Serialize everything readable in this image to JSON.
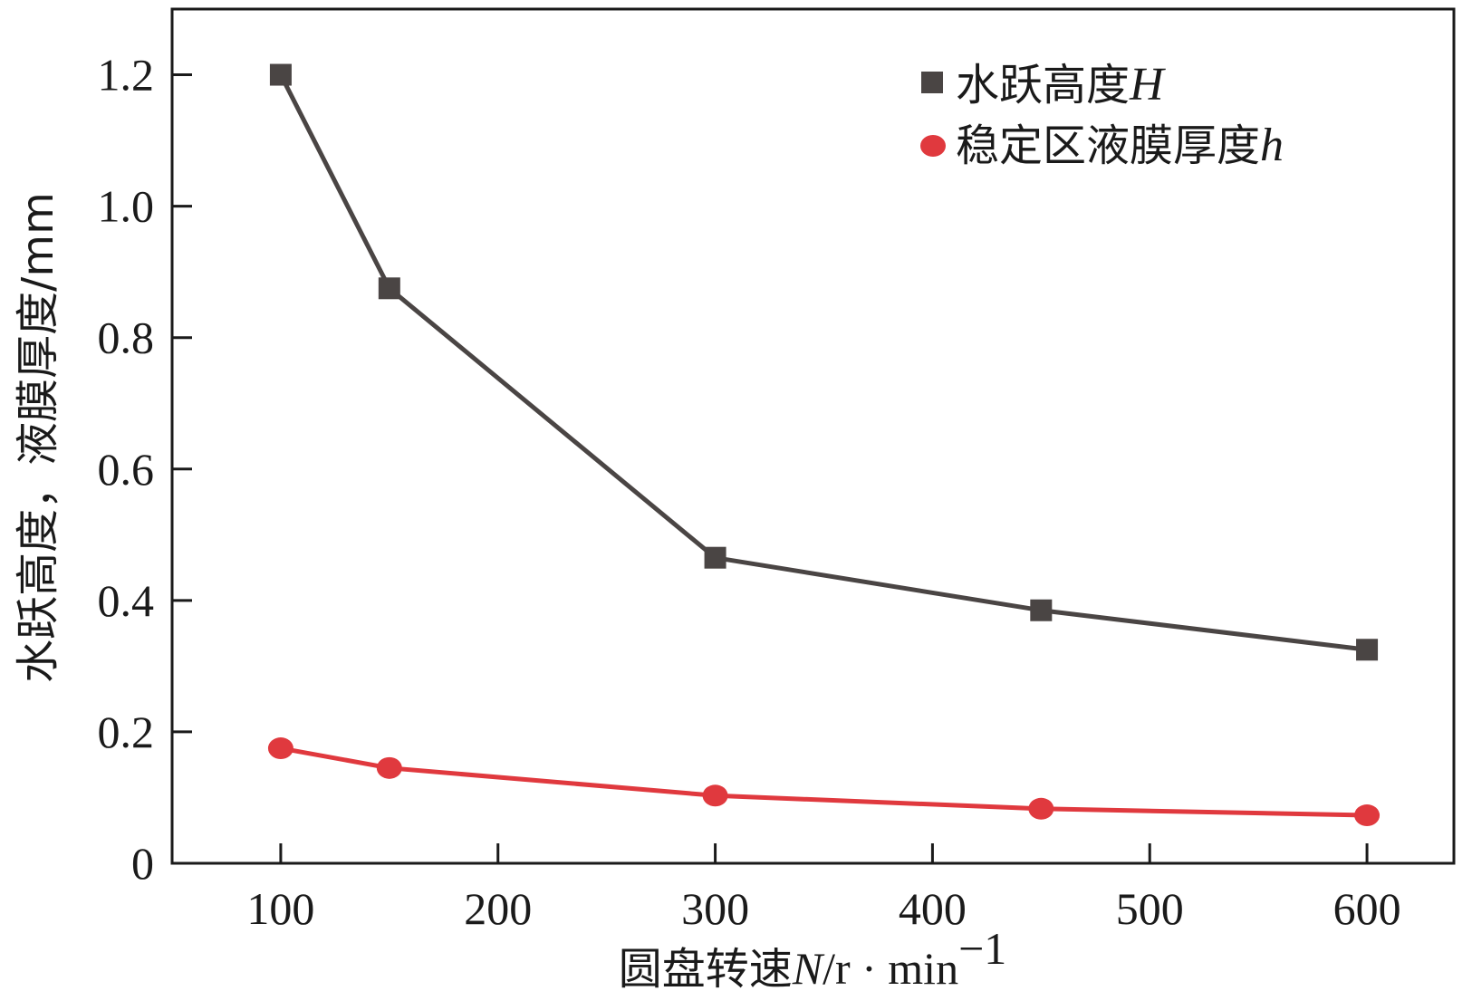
{
  "chart_data": {
    "type": "line",
    "title": "",
    "xlabel": {
      "prefix": "圆盘转速",
      "var": "N",
      "unit": "/r · min",
      "sup": "−1"
    },
    "ylabel": "水跃高度，液膜厚度/mm",
    "xlim": [
      50,
      640
    ],
    "ylim": [
      0,
      1.3
    ],
    "x_ticks": [
      100,
      200,
      300,
      400,
      500,
      600
    ],
    "x_tick_labels": [
      "100",
      "200",
      "300",
      "400",
      "500",
      "600"
    ],
    "y_ticks": [
      0,
      0.2,
      0.4,
      0.6,
      0.8,
      1.0,
      1.2
    ],
    "y_tick_labels": [
      "0",
      "0.2",
      "0.4",
      "0.6",
      "0.8",
      "1.0",
      "1.2"
    ],
    "grid": false,
    "legend_position": "top-right",
    "x": [
      100,
      150,
      300,
      450,
      600
    ],
    "series": [
      {
        "name": "水跃高度",
        "var": "H",
        "marker": "square",
        "color": "#4a4544",
        "values": [
          1.2,
          0.875,
          0.465,
          0.385,
          0.325
        ]
      },
      {
        "name": "稳定区液膜厚度",
        "var": "h",
        "marker": "circle",
        "color": "#e0393e",
        "values": [
          0.175,
          0.145,
          0.103,
          0.083,
          0.073
        ]
      }
    ]
  }
}
